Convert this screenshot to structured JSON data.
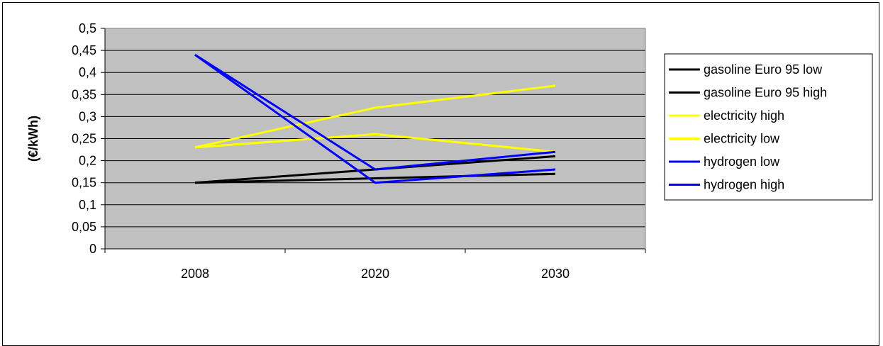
{
  "chart_data": {
    "type": "line",
    "title": "",
    "xlabel": "",
    "ylabel": "(€/kWh)",
    "categories": [
      "2008",
      "2020",
      "2030"
    ],
    "ylim": [
      0,
      0.5
    ],
    "yticks": [
      "0",
      "0,05",
      "0,1",
      "0,15",
      "0,2",
      "0,25",
      "0,3",
      "0,35",
      "0,4",
      "0,45",
      "0,5"
    ],
    "grid": true,
    "plot_background": "#c0c0c0",
    "legend_position": "right",
    "series": [
      {
        "name": "gasoline Euro 95 low",
        "color": "#000000",
        "values": [
          0.15,
          0.16,
          0.17
        ]
      },
      {
        "name": "gasoline Euro 95 high",
        "color": "#000000",
        "values": [
          0.15,
          0.18,
          0.21
        ]
      },
      {
        "name": "electricity high",
        "color": "#ffff00",
        "values": [
          0.23,
          0.32,
          0.37
        ]
      },
      {
        "name": "electricity low",
        "color": "#ffff00",
        "values": [
          0.23,
          0.26,
          0.22
        ]
      },
      {
        "name": "hydrogen low",
        "color": "#0000ff",
        "values": [
          0.44,
          0.15,
          0.18
        ]
      },
      {
        "name": "hydrogen high",
        "color": "#0000ff",
        "values": [
          0.44,
          0.18,
          0.22
        ]
      }
    ]
  }
}
